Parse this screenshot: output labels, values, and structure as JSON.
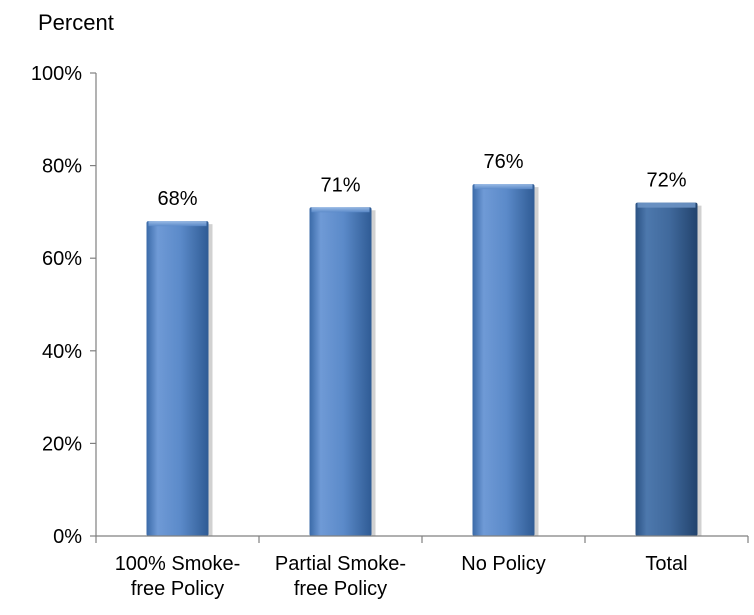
{
  "chart_data": {
    "type": "bar",
    "ylabel": "Percent",
    "xlabel": "",
    "title": "",
    "categories": [
      [
        "100% Smoke-",
        "free Policy"
      ],
      [
        "Partial Smoke-",
        "free Policy"
      ],
      [
        "No Policy"
      ],
      [
        "Total"
      ]
    ],
    "values": [
      68,
      71,
      76,
      72
    ],
    "data_labels": [
      "68%",
      "71%",
      "76%",
      "72%"
    ],
    "ylim": [
      0,
      100
    ],
    "yticks": [
      {
        "value": 0,
        "label": "0%"
      },
      {
        "value": 20,
        "label": "20%"
      },
      {
        "value": 40,
        "label": "40%"
      },
      {
        "value": 60,
        "label": "60%"
      },
      {
        "value": 80,
        "label": "80%"
      },
      {
        "value": 100,
        "label": "100%"
      }
    ],
    "grid": false,
    "legend": "none",
    "colors": {
      "bar_light": "#4f81bd",
      "bar_dark": "#3c6798",
      "axis": "#808080",
      "text": "#000000"
    }
  }
}
